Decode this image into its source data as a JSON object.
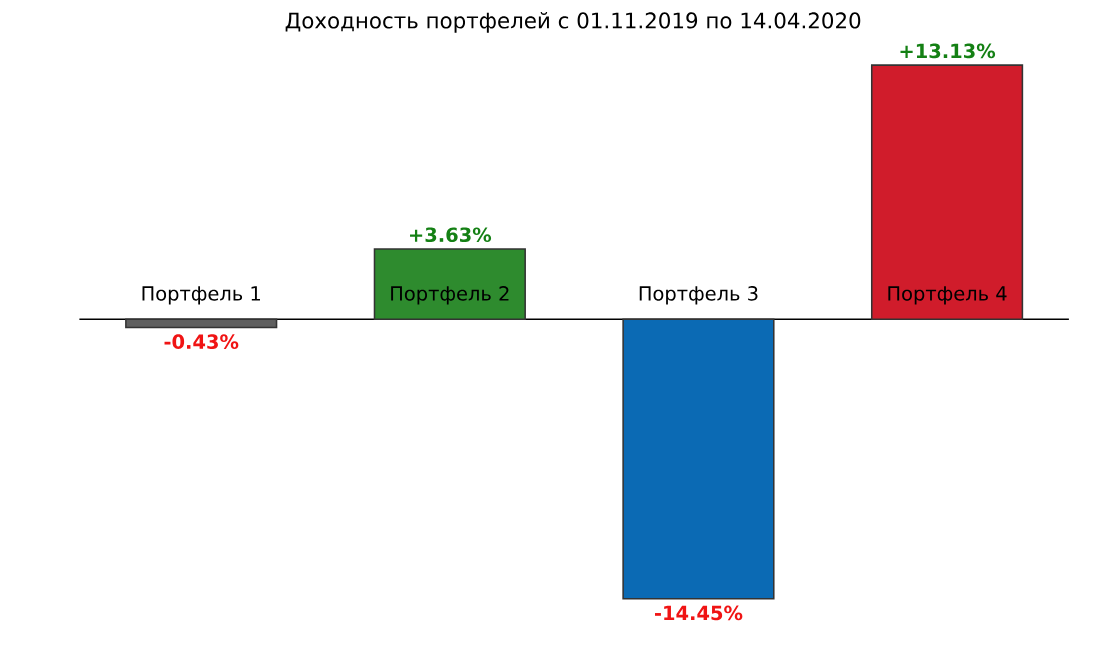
{
  "chart_data": {
    "type": "bar",
    "title": "Доходность портфелей с 01.11.2019 по 14.04.2020",
    "categories": [
      "Портфель 1",
      "Портфель 2",
      "Портфель 3",
      "Портфель 4"
    ],
    "values": [
      -0.43,
      3.63,
      -14.45,
      13.13
    ],
    "colors": [
      "#5f5f5f",
      "#2e8b2e",
      "#0b6ab4",
      "#d01c2b"
    ],
    "value_labels": [
      "-0.43%",
      "+3.63%",
      "-14.45%",
      "+13.13%"
    ]
  }
}
